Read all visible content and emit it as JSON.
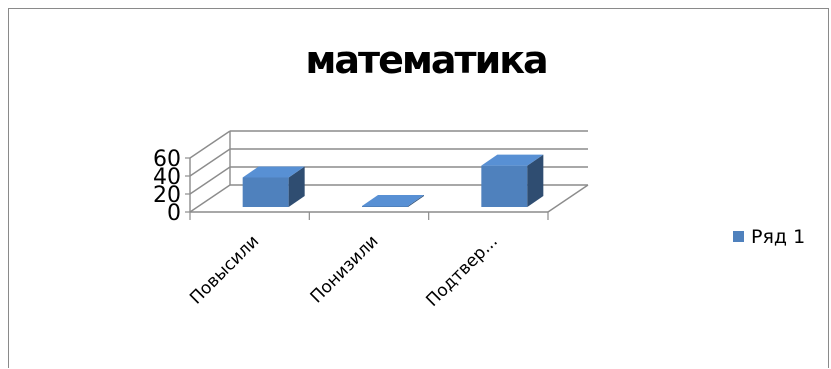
{
  "chart_data": {
    "type": "bar",
    "title": "математика",
    "categories": [
      "Повысили",
      "Понизили",
      "Подтвер..."
    ],
    "series": [
      {
        "name": "Ряд 1",
        "values": [
          40,
          1,
          56
        ],
        "color": "#4f81bd"
      }
    ],
    "ylim": [
      0,
      60
    ],
    "yticks": [
      "0",
      "20",
      "40",
      "60"
    ],
    "xlabel": "",
    "ylabel": "",
    "grid": true,
    "legend_position": "right"
  }
}
